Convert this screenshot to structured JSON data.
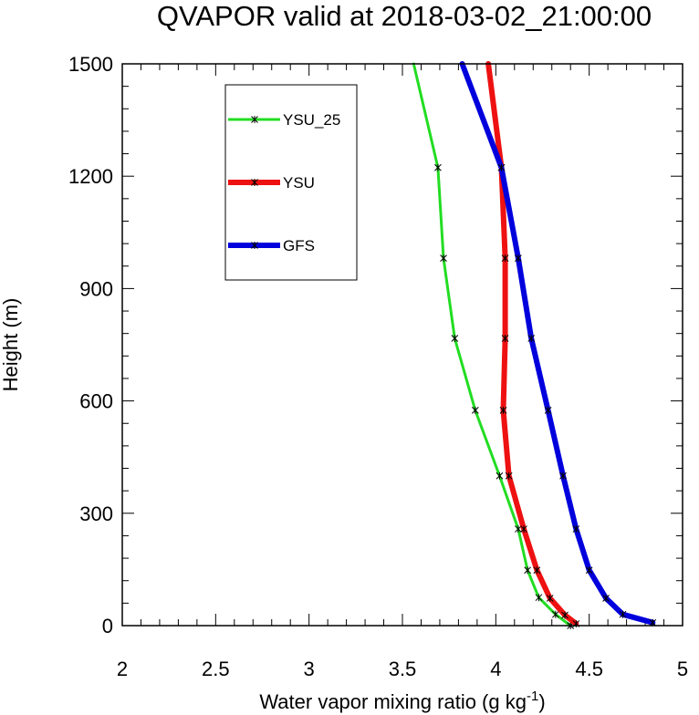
{
  "chart_data": {
    "type": "line",
    "title": "QVAPOR valid at 2018-03-02_21:00:00",
    "xlabel": "Water vapor mixing ratio (g kg",
    "xlabel_exponent": "-1",
    "xlabel_close": ")",
    "ylabel": "Height (m)",
    "xlim": [
      2,
      5
    ],
    "ylim": [
      0,
      1500
    ],
    "x_ticks": [
      "2",
      "2.5",
      "3",
      "3.5",
      "4",
      "4.5",
      "5"
    ],
    "y_ticks": [
      "0",
      "300",
      "600",
      "900",
      "1200",
      "1500"
    ],
    "grid": false,
    "legend_position": "top-left",
    "series": [
      {
        "name": "YSU_25",
        "color": "#22dd22",
        "points": [
          {
            "x": 4.4,
            "y": 0
          },
          {
            "x": 4.32,
            "y": 30
          },
          {
            "x": 4.23,
            "y": 75
          },
          {
            "x": 4.17,
            "y": 148
          },
          {
            "x": 4.12,
            "y": 258
          },
          {
            "x": 4.02,
            "y": 400
          },
          {
            "x": 3.89,
            "y": 575
          },
          {
            "x": 3.78,
            "y": 767
          },
          {
            "x": 3.72,
            "y": 981
          },
          {
            "x": 3.69,
            "y": 1223
          },
          {
            "x": 3.56,
            "y": 1500
          }
        ]
      },
      {
        "name": "YSU",
        "color": "#ee1111",
        "points": [
          {
            "x": 4.43,
            "y": 5
          },
          {
            "x": 4.37,
            "y": 28
          },
          {
            "x": 4.29,
            "y": 73
          },
          {
            "x": 4.22,
            "y": 148
          },
          {
            "x": 4.15,
            "y": 258
          },
          {
            "x": 4.07,
            "y": 400
          },
          {
            "x": 4.04,
            "y": 575
          },
          {
            "x": 4.05,
            "y": 767
          },
          {
            "x": 4.05,
            "y": 981
          },
          {
            "x": 4.03,
            "y": 1223
          },
          {
            "x": 3.96,
            "y": 1500
          }
        ]
      },
      {
        "name": "GFS",
        "color": "#0000dd",
        "points": [
          {
            "x": 4.84,
            "y": 8
          },
          {
            "x": 4.68,
            "y": 30
          },
          {
            "x": 4.59,
            "y": 73
          },
          {
            "x": 4.5,
            "y": 148
          },
          {
            "x": 4.43,
            "y": 258
          },
          {
            "x": 4.36,
            "y": 400
          },
          {
            "x": 4.28,
            "y": 575
          },
          {
            "x": 4.19,
            "y": 767
          },
          {
            "x": 4.12,
            "y": 981
          },
          {
            "x": 4.03,
            "y": 1223
          },
          {
            "x": 3.82,
            "y": 1500
          }
        ]
      }
    ]
  }
}
